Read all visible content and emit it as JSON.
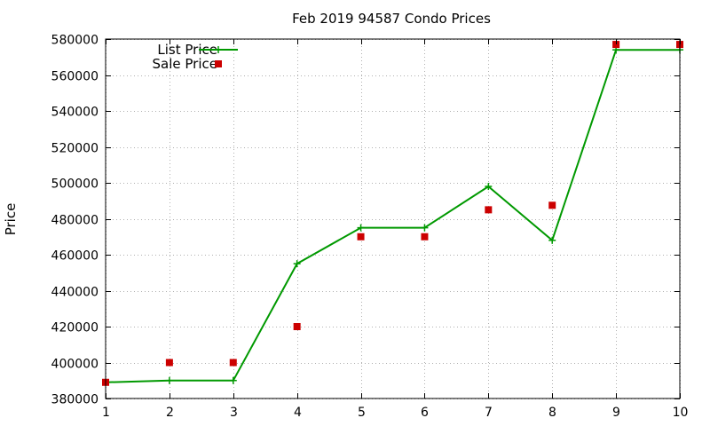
{
  "chart_data": {
    "type": "line",
    "title": "Feb 2019 94587 Condo Prices",
    "xlabel": "",
    "ylabel": "Price",
    "xlim": [
      1,
      10
    ],
    "ylim": [
      380000,
      580000
    ],
    "xticks": [
      1,
      2,
      3,
      4,
      5,
      6,
      7,
      8,
      9,
      10
    ],
    "yticks": [
      380000,
      400000,
      420000,
      440000,
      460000,
      480000,
      500000,
      520000,
      540000,
      560000,
      580000
    ],
    "grid": true,
    "legend_position": "top-left",
    "series": [
      {
        "name": "List Price",
        "style": "line+points",
        "color": "#009900",
        "x": [
          1,
          2,
          3,
          4,
          5,
          6,
          7,
          8,
          9,
          10
        ],
        "y": [
          389000,
          390000,
          390000,
          455000,
          475000,
          475000,
          498000,
          468000,
          574000,
          574000
        ]
      },
      {
        "name": "Sale Price",
        "style": "points",
        "color": "#cc0000",
        "x": [
          1,
          2,
          3,
          4,
          5,
          6,
          7,
          8,
          9,
          10
        ],
        "y": [
          389000,
          400000,
          400000,
          420000,
          470000,
          470000,
          485000,
          487500,
          577000,
          577000
        ]
      }
    ]
  }
}
